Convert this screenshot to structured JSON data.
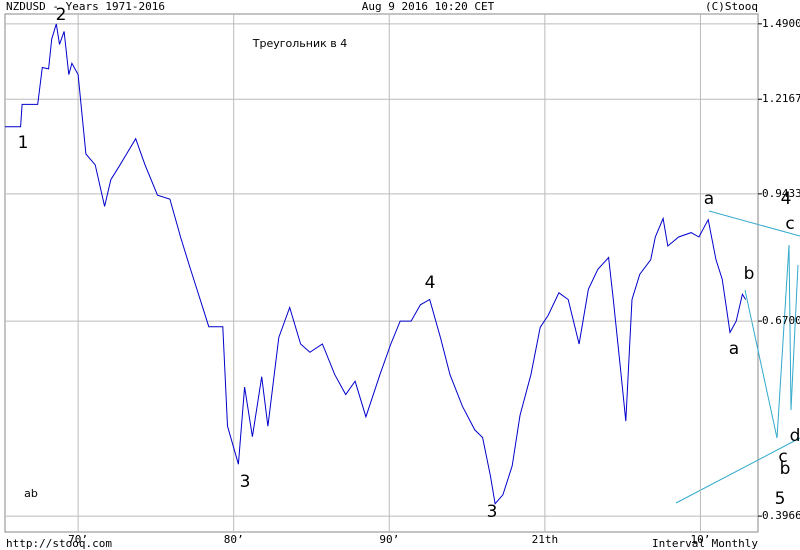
{
  "chart_data": {
    "type": "line",
    "title": "NZDUSD - Years 1971-2016",
    "date": "Aug 9 2016 10:20 CET",
    "credit": "(C)Stooq",
    "note": "Треугольник в 4",
    "source": "http://stooq.com",
    "interval": "Interval Monthly",
    "x": [
      1965.3,
      1966.3,
      1966.4,
      1967.4,
      1967.7,
      1968.1,
      1968.3,
      1968.6,
      1968.8,
      1969.1,
      1969.4,
      1969.6,
      1970.0,
      1970.5,
      1971.1,
      1971.7,
      1972.1,
      1972.7,
      1973.7,
      1974.3,
      1975.1,
      1975.9,
      1976.6,
      1977.2,
      1977.8,
      1978.4,
      1979.3,
      1979.6,
      1980.3,
      1980.7,
      1981.2,
      1981.8,
      1982.2,
      1982.9,
      1983.6,
      1984.3,
      1984.9,
      1985.7,
      1986.5,
      1987.2,
      1987.8,
      1988.5,
      1989.4,
      1990.1,
      1990.7,
      1991.4,
      1992.0,
      1992.6,
      1993.3,
      1993.9,
      1994.7,
      1995.5,
      1996.0,
      1996.5,
      1996.8,
      1997.3,
      1997.9,
      1998.4,
      1999.1,
      1999.7,
      2000.2,
      2000.9,
      2001.5,
      2002.2,
      2002.8,
      2003.4,
      2004.1,
      2004.4,
      2004.9,
      2005.2,
      2005.6,
      2006.1,
      2006.8,
      2007.1,
      2007.6,
      2007.9,
      2008.6,
      2009.4,
      2009.9,
      2010.5,
      2011.0,
      2011.4,
      2011.9,
      2012.3,
      2012.7,
      2012.9
    ],
    "values": [
      1.13,
      1.13,
      1.2,
      1.2,
      1.325,
      1.32,
      1.43,
      1.49,
      1.41,
      1.46,
      1.3,
      1.34,
      1.3,
      1.05,
      1.02,
      0.912,
      0.98,
      1.02,
      1.094,
      1.02,
      0.94,
      0.93,
      0.838,
      0.773,
      0.714,
      0.66,
      0.66,
      0.505,
      0.456,
      0.561,
      0.491,
      0.577,
      0.505,
      0.641,
      0.695,
      0.63,
      0.616,
      0.63,
      0.58,
      0.55,
      0.57,
      0.518,
      0.58,
      0.63,
      0.67,
      0.67,
      0.7,
      0.71,
      0.64,
      0.58,
      0.533,
      0.5,
      0.49,
      0.442,
      0.41,
      0.42,
      0.454,
      0.52,
      0.58,
      0.659,
      0.68,
      0.723,
      0.71,
      0.63,
      0.73,
      0.77,
      0.795,
      0.71,
      0.58,
      0.512,
      0.71,
      0.76,
      0.79,
      0.84,
      0.883,
      0.82,
      0.84,
      0.85,
      0.84,
      0.88,
      0.79,
      0.75,
      0.65,
      0.67,
      0.72,
      0.71
    ],
    "color": "#0000cc",
    "log_y": true,
    "grid": true,
    "xlim": [
      1965.3,
      2013.7
    ],
    "ylim": [
      0.38,
      1.53
    ],
    "xticks": [
      {
        "value": 1970,
        "label": "70’"
      },
      {
        "value": 1980,
        "label": "80’"
      },
      {
        "value": 1990,
        "label": "90’"
      },
      {
        "value": 2000,
        "label": "21th"
      },
      {
        "value": 2010,
        "label": "10’"
      }
    ],
    "yticks": [
      {
        "value": 1.49,
        "label": "1.4900"
      },
      {
        "value": 1.2167,
        "label": "1.2167"
      },
      {
        "value": 0.9433,
        "label": "0.9433"
      },
      {
        "value": 0.67,
        "label": "0.6700"
      },
      {
        "value": 0.3966,
        "label": "0.3966"
      }
    ],
    "annotations": [
      {
        "text": "1",
        "color": "#3399cc"
      },
      {
        "text": "2",
        "color": "#3399cc"
      },
      {
        "text": "3",
        "color": "#3399cc"
      },
      {
        "text": "4",
        "color": "#3399cc"
      },
      {
        "text": "3",
        "color": "#3399cc"
      },
      {
        "text": "ab",
        "color": "#3399cc"
      },
      {
        "text": "a",
        "color": "#33aa33"
      },
      {
        "text": "4",
        "color": "#3399cc"
      },
      {
        "text": "c",
        "color": "#33aa33"
      },
      {
        "text": "b",
        "color": "#3399cc"
      },
      {
        "text": "a",
        "color": "#3399cc"
      },
      {
        "text": "d",
        "color": "#33aa33"
      },
      {
        "text": "c",
        "color": "#3399cc"
      },
      {
        "text": "b",
        "color": "#33aa33"
      },
      {
        "text": "5",
        "color": "#3399cc"
      }
    ]
  }
}
